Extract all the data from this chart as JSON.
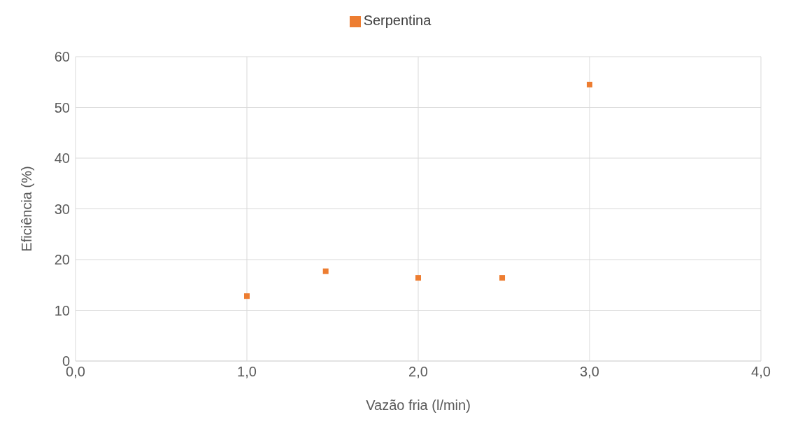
{
  "chart_data": {
    "type": "scatter",
    "xlabel": "Vazão fria (l/min)",
    "ylabel": "Eficiência (%)",
    "xlim": [
      0,
      4
    ],
    "xticks": [
      {
        "value": 0,
        "label": "0,0"
      },
      {
        "value": 1,
        "label": "1,0"
      },
      {
        "value": 2,
        "label": "2,0"
      },
      {
        "value": 3,
        "label": "3,0"
      },
      {
        "value": 4,
        "label": "4,0"
      }
    ],
    "ylim": [
      0,
      60
    ],
    "yticks": [
      0,
      10,
      20,
      30,
      40,
      50,
      60
    ],
    "grid": true,
    "legend": "top",
    "marker": "square",
    "series": [
      {
        "name": "Serpentina",
        "color": "#ed7d31",
        "x": [
          1.0,
          1.46,
          2.0,
          2.49,
          3.0
        ],
        "values": [
          12.8,
          17.7,
          16.4,
          16.4,
          54.5
        ]
      }
    ]
  }
}
